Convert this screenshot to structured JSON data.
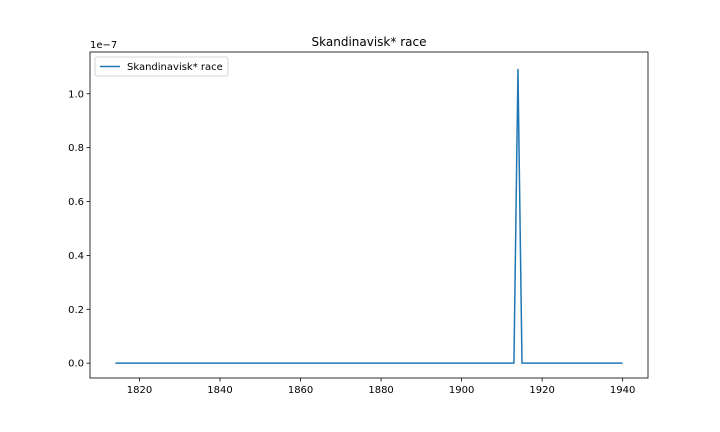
{
  "chart_data": {
    "type": "line",
    "title": "Skandinavisk* race",
    "xlabel": "",
    "ylabel": "",
    "y_offset_label": "1e−7",
    "xlim": [
      1807.7,
      1946.3
    ],
    "ylim": [
      -0.055,
      1.155
    ],
    "xticks": [
      1820,
      1840,
      1860,
      1880,
      1900,
      1920,
      1940
    ],
    "xtick_labels": [
      "1820",
      "1840",
      "1860",
      "1880",
      "1900",
      "1920",
      "1940"
    ],
    "yticks": [
      0.0,
      0.2,
      0.4,
      0.6,
      0.8,
      1.0
    ],
    "ytick_labels": [
      "0.0",
      "0.2",
      "0.4",
      "0.6",
      "0.8",
      "1.0"
    ],
    "grid": false,
    "legend_position": "top-left",
    "series": [
      {
        "name": "Skandinavisk* race",
        "color": "#1f77b4",
        "x": [
          1814,
          1913,
          1914,
          1915,
          1940
        ],
        "y": [
          0.0,
          0.0,
          1.09,
          0.0,
          0.0
        ]
      }
    ]
  }
}
